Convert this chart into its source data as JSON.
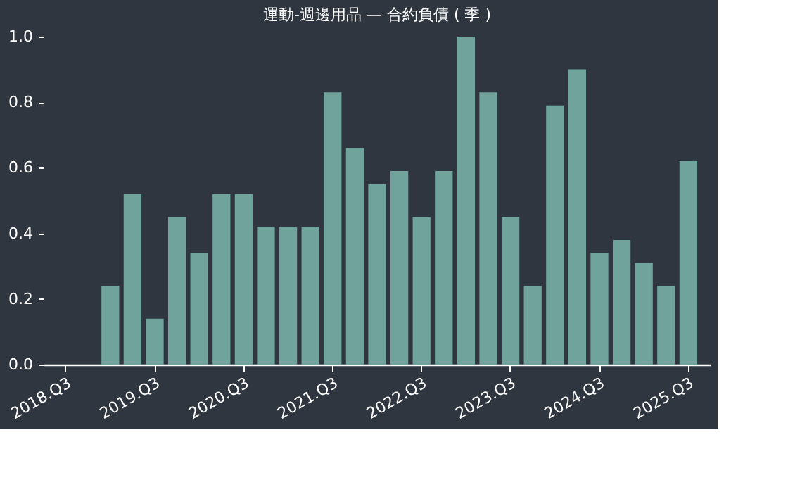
{
  "chart_data": {
    "type": "bar",
    "title": "運動-週邊用品 — 合約負債 ( 季 )",
    "categories": [
      "2018.Q3",
      null,
      null,
      null,
      "2019.Q3",
      null,
      null,
      null,
      "2020.Q3",
      null,
      null,
      null,
      "2021.Q3",
      null,
      null,
      null,
      "2022.Q3",
      null,
      null,
      null,
      "2023.Q3",
      null,
      null,
      null,
      "2024.Q3",
      null,
      null,
      null,
      "2025.Q3"
    ],
    "values": [
      null,
      null,
      0.24,
      0.52,
      0.14,
      0.45,
      0.34,
      0.52,
      0.52,
      0.42,
      0.42,
      0.42,
      0.83,
      0.66,
      0.55,
      0.59,
      0.45,
      0.59,
      1.0,
      0.83,
      0.45,
      0.24,
      0.79,
      0.9,
      0.34,
      0.38,
      0.31,
      0.24,
      0.62
    ],
    "color": "#6fa39c",
    "ylim": [
      0,
      1
    ],
    "yticks": [
      {
        "value": 0,
        "label": "0.0"
      },
      0.2,
      0.4,
      0.6,
      0.8,
      {
        "value": 1,
        "label": "1.0"
      }
    ],
    "grid": false
  }
}
